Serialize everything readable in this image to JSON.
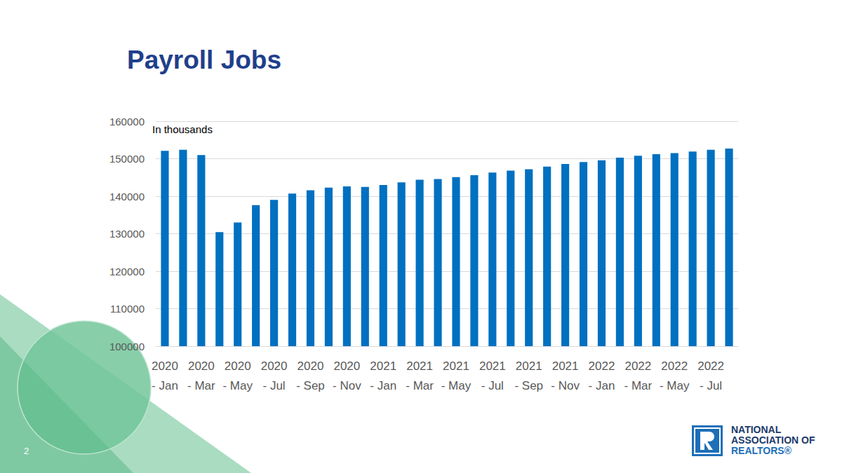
{
  "chart_data": {
    "type": "bar",
    "title": "Payroll Jobs",
    "annotations": [
      "In thousands"
    ],
    "categories": [
      "2020 - Jan",
      null,
      "2020 - Mar",
      null,
      "2020 - May",
      null,
      "2020 - Jul",
      null,
      "2020 - Sep",
      null,
      "2020 - Nov",
      null,
      "2021 - Jan",
      null,
      "2021 - Mar",
      null,
      "2021 - May",
      null,
      "2021 - Jul",
      null,
      "2021 - Sep",
      null,
      "2021 - Nov",
      null,
      "2022 - Jan",
      null,
      "2022 - Mar",
      null,
      "2022 - May",
      null,
      "2022 - Jul",
      null
    ],
    "values": [
      152100,
      152400,
      151000,
      130400,
      133000,
      137600,
      139000,
      140700,
      141600,
      142300,
      142600,
      142500,
      143000,
      143700,
      144400,
      144600,
      145100,
      145600,
      146300,
      146800,
      147200,
      147900,
      148600,
      149100,
      149600,
      150300,
      150800,
      151200,
      151500,
      151900,
      152400,
      152700
    ],
    "color": "#0070c0",
    "ylim": [
      100000,
      160000
    ],
    "yticks": [
      100000,
      110000,
      120000,
      130000,
      140000,
      150000,
      160000
    ],
    "grid": true
  },
  "slide": {
    "page_number": 2,
    "logo_text": [
      "NATIONAL",
      "ASSOCIATION OF",
      "REALTORS®"
    ]
  }
}
